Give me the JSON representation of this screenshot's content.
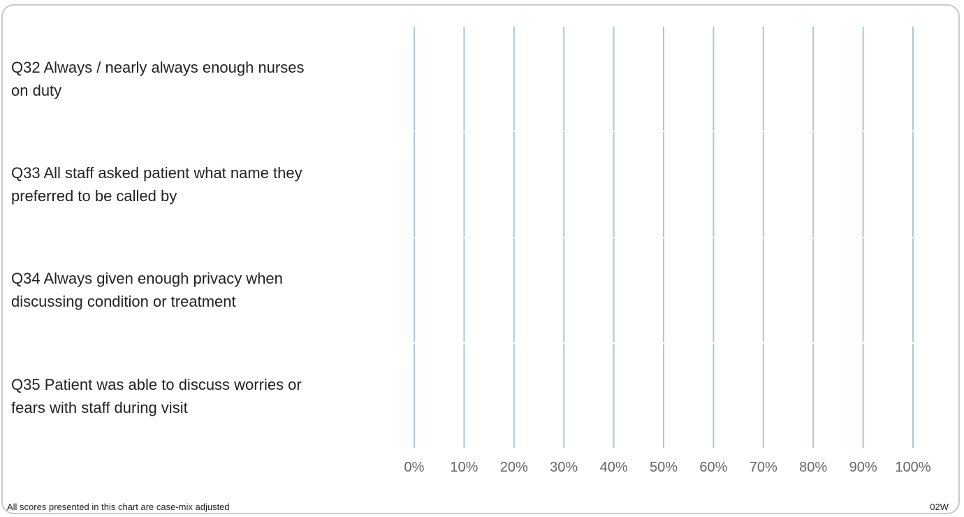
{
  "chart_data": {
    "type": "bar",
    "orientation": "horizontal",
    "categories": [
      "Q32 Always / nearly always enough nurses on duty",
      "Q33 All staff asked patient what name they preferred to be called by",
      "Q34 Always given enough privacy when discussing condition or treatment",
      "Q35 Patient was able to discuss worries or fears with staff during visit"
    ],
    "category_lines": [
      [
        "Q32 Always / nearly always enough nurses",
        "on duty"
      ],
      [
        "Q33 All staff asked patient what name they",
        "preferred to be called by"
      ],
      [
        "Q34 Always given enough privacy when",
        "discussing condition or treatment"
      ],
      [
        "Q35 Patient was able to discuss worries or",
        "fears with staff during visit"
      ]
    ],
    "series": [],
    "xlim": [
      0,
      100
    ],
    "x_ticks": [
      "0%",
      "10%",
      "20%",
      "30%",
      "40%",
      "50%",
      "60%",
      "70%",
      "80%",
      "90%",
      "100%"
    ],
    "grid": true,
    "grid_color": "#a9c8de"
  },
  "footnote": "All scores presented in this chart are case-mix adjusted",
  "code": "02W"
}
